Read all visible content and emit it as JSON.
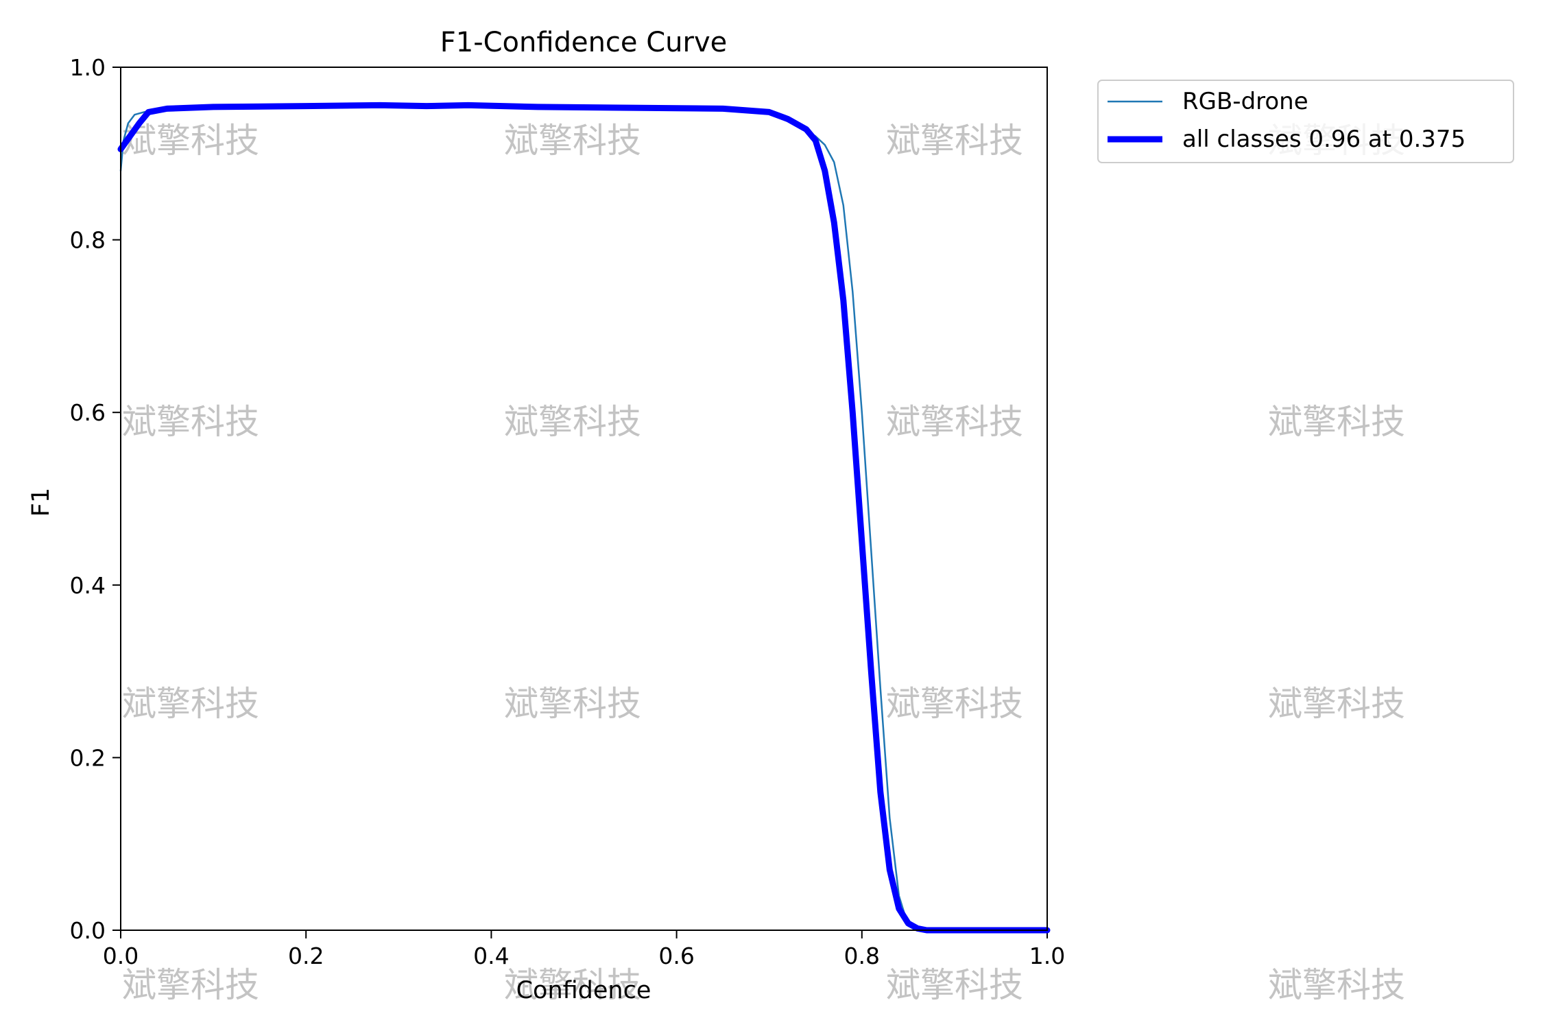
{
  "chart_data": {
    "type": "line",
    "title": "F1-Confidence Curve",
    "xlabel": "Confidence",
    "ylabel": "F1",
    "xlim": [
      0.0,
      1.0
    ],
    "ylim": [
      0.0,
      1.0
    ],
    "xticks": [
      "0.0",
      "0.2",
      "0.4",
      "0.6",
      "0.8",
      "1.0"
    ],
    "yticks": [
      "0.0",
      "0.2",
      "0.4",
      "0.6",
      "0.8",
      "1.0"
    ],
    "grid": false,
    "legend_position": "outside-top-right",
    "series": [
      {
        "name": "RGB-drone",
        "color": "#1f77b4",
        "x": [
          0.0,
          0.003,
          0.008,
          0.015,
          0.025,
          0.04,
          0.1,
          0.2,
          0.3,
          0.375,
          0.45,
          0.55,
          0.65,
          0.7,
          0.73,
          0.75,
          0.76,
          0.77,
          0.78,
          0.79,
          0.8,
          0.81,
          0.82,
          0.83,
          0.84,
          0.85,
          0.86,
          0.87,
          0.88,
          0.9,
          1.0
        ],
        "y": [
          0.88,
          0.915,
          0.935,
          0.945,
          0.948,
          0.952,
          0.954,
          0.955,
          0.956,
          0.957,
          0.955,
          0.953,
          0.952,
          0.948,
          0.935,
          0.92,
          0.91,
          0.89,
          0.84,
          0.74,
          0.6,
          0.44,
          0.28,
          0.13,
          0.04,
          0.005,
          0.0,
          0.0,
          0.0,
          0.0,
          0.0
        ]
      },
      {
        "name": "all classes 0.96 at 0.375",
        "color": "#0000ff",
        "x": [
          0.0,
          0.01,
          0.02,
          0.03,
          0.05,
          0.1,
          0.2,
          0.28,
          0.33,
          0.375,
          0.45,
          0.55,
          0.65,
          0.7,
          0.72,
          0.74,
          0.75,
          0.76,
          0.77,
          0.78,
          0.79,
          0.8,
          0.81,
          0.82,
          0.83,
          0.84,
          0.85,
          0.86,
          0.87,
          0.88,
          0.9,
          1.0
        ],
        "y": [
          0.905,
          0.92,
          0.935,
          0.948,
          0.952,
          0.954,
          0.955,
          0.956,
          0.955,
          0.956,
          0.954,
          0.953,
          0.952,
          0.948,
          0.94,
          0.928,
          0.915,
          0.88,
          0.82,
          0.73,
          0.6,
          0.45,
          0.3,
          0.16,
          0.07,
          0.025,
          0.008,
          0.002,
          0.0,
          0.0,
          0.0,
          0.0
        ]
      }
    ]
  },
  "watermark": "斌擎科技"
}
